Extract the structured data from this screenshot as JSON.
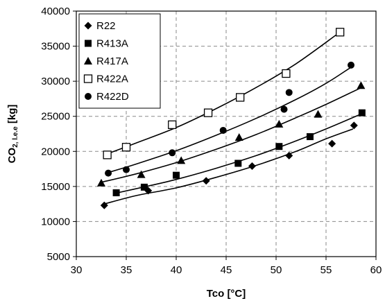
{
  "chart_data": {
    "type": "scatter",
    "title": "",
    "xlabel": "Tco [°C]",
    "ylabel_main": "CO",
    "ylabel_sub": "2, l.e.e",
    "ylabel_tail": " [kg]",
    "xlim": [
      30,
      60
    ],
    "ylim": [
      5000,
      40000
    ],
    "x_ticks": [
      30,
      35,
      40,
      45,
      50,
      55,
      60
    ],
    "y_ticks": [
      5000,
      10000,
      15000,
      20000,
      25000,
      30000,
      35000,
      40000
    ],
    "x_tick_labels": [
      "30",
      "35",
      "40",
      "45",
      "50",
      "55",
      "60"
    ],
    "y_tick_labels": [
      "5000",
      "10000",
      "15000",
      "20000",
      "25000",
      "30000",
      "35000",
      "40000"
    ],
    "grid": true,
    "legend_position": "top-left",
    "colors": {
      "marker": "#000000",
      "grid": "#8a8a8a",
      "background": "#ffffff"
    },
    "series": [
      {
        "name": "R22",
        "marker": "diamond",
        "x": [
          32.8,
          37.2,
          43.0,
          47.6,
          51.3,
          55.6,
          57.8
        ],
        "y": [
          12300,
          14400,
          15800,
          17900,
          19400,
          21100,
          23700
        ],
        "fit": [
          [
            32.8,
            12500
          ],
          [
            36.0,
            13700
          ],
          [
            40.0,
            14800
          ],
          [
            44.0,
            16300
          ],
          [
            48.0,
            18000
          ],
          [
            52.0,
            20000
          ],
          [
            55.0,
            21800
          ],
          [
            57.7,
            23200
          ]
        ]
      },
      {
        "name": "R413A",
        "marker": "square-filled",
        "x": [
          34.0,
          36.8,
          40.0,
          46.2,
          50.3,
          53.4,
          58.6
        ],
        "y": [
          14100,
          14900,
          16600,
          18300,
          20700,
          22100,
          25500
        ],
        "fit": [
          [
            33.8,
            14000
          ],
          [
            37.0,
            15000
          ],
          [
            40.0,
            16000
          ],
          [
            44.0,
            17600
          ],
          [
            48.0,
            19400
          ],
          [
            52.0,
            21500
          ],
          [
            55.0,
            23200
          ],
          [
            58.3,
            25200
          ]
        ]
      },
      {
        "name": "R417A",
        "marker": "triangle",
        "x": [
          32.5,
          36.5,
          40.5,
          46.3,
          50.3,
          54.2,
          58.5
        ],
        "y": [
          15500,
          16700,
          18700,
          22000,
          23900,
          25300,
          29400
        ],
        "fit": [
          [
            32.5,
            15600
          ],
          [
            36.0,
            16800
          ],
          [
            40.0,
            18400
          ],
          [
            44.0,
            20300
          ],
          [
            48.0,
            22400
          ],
          [
            52.0,
            24800
          ],
          [
            55.0,
            26700
          ],
          [
            58.4,
            29000
          ]
        ]
      },
      {
        "name": "R422A",
        "marker": "square-open",
        "x": [
          33.1,
          35.0,
          39.6,
          43.2,
          46.4,
          51.0,
          56.4
        ],
        "y": [
          19500,
          20600,
          23800,
          25500,
          27700,
          31100,
          37000
        ],
        "fit": [
          [
            33.0,
            19600
          ],
          [
            36.0,
            21200
          ],
          [
            40.0,
            23400
          ],
          [
            44.0,
            26100
          ],
          [
            48.0,
            29100
          ],
          [
            52.0,
            32500
          ],
          [
            56.2,
            36800
          ]
        ]
      },
      {
        "name": "R422D",
        "marker": "circle",
        "x": [
          33.2,
          35.0,
          39.6,
          44.7,
          50.8,
          51.3,
          57.5
        ],
        "y": [
          16900,
          17400,
          19800,
          23000,
          26000,
          28400,
          32300
        ],
        "fit": [
          [
            33.0,
            16900
          ],
          [
            36.0,
            18200
          ],
          [
            40.0,
            20100
          ],
          [
            44.0,
            22300
          ],
          [
            48.0,
            24700
          ],
          [
            52.0,
            27400
          ],
          [
            55.0,
            29700
          ],
          [
            57.4,
            31900
          ]
        ]
      }
    ]
  }
}
